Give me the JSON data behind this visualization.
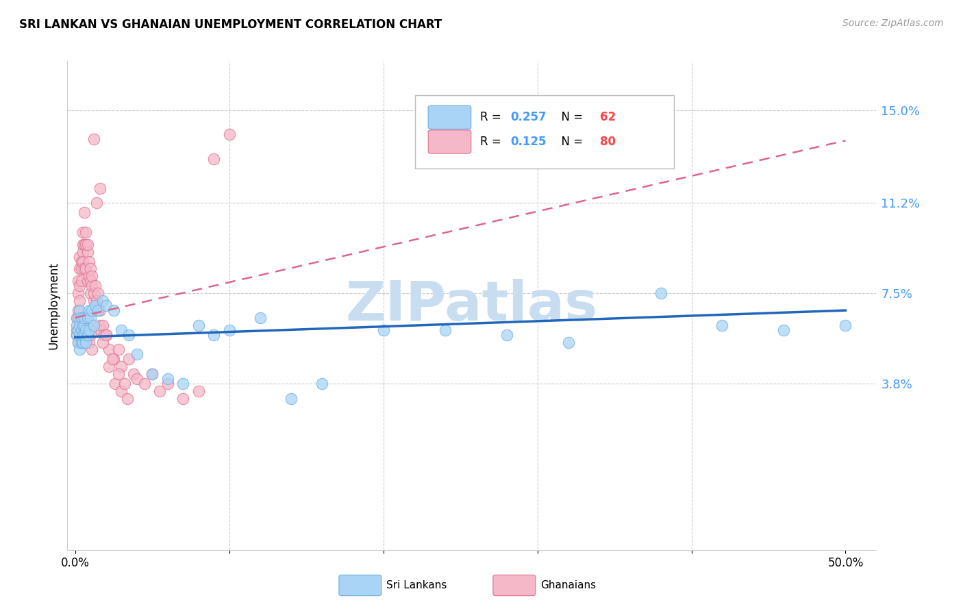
{
  "title": "SRI LANKAN VS GHANAIAN UNEMPLOYMENT CORRELATION CHART",
  "source": "Source: ZipAtlas.com",
  "ylabel": "Unemployment",
  "ytick_labels": [
    "15.0%",
    "11.2%",
    "7.5%",
    "3.8%"
  ],
  "ytick_values": [
    0.15,
    0.112,
    0.075,
    0.038
  ],
  "xlim": [
    -0.005,
    0.52
  ],
  "ylim": [
    -0.03,
    0.17
  ],
  "color_sri": "#aad4f5",
  "color_sri_edge": "#6aaee0",
  "color_ghana": "#f5b8c8",
  "color_ghana_edge": "#e07090",
  "color_sri_line": "#2266bb",
  "color_ghana_line": "#dd6688",
  "watermark": "ZIPatlas",
  "watermark_color": "#c8ddf0",
  "sri_lankan_x": [
    0.001,
    0.001,
    0.002,
    0.002,
    0.002,
    0.003,
    0.003,
    0.003,
    0.003,
    0.004,
    0.004,
    0.004,
    0.005,
    0.005,
    0.005,
    0.006,
    0.006,
    0.006,
    0.007,
    0.007,
    0.008,
    0.008,
    0.009,
    0.009,
    0.01,
    0.011,
    0.012,
    0.013,
    0.015,
    0.018,
    0.02,
    0.025,
    0.03,
    0.035,
    0.04,
    0.05,
    0.06,
    0.07,
    0.08,
    0.09,
    0.1,
    0.12,
    0.14,
    0.16,
    0.2,
    0.24,
    0.28,
    0.32,
    0.38,
    0.42,
    0.46,
    0.5
  ],
  "sri_lankan_y": [
    0.058,
    0.062,
    0.055,
    0.06,
    0.065,
    0.052,
    0.058,
    0.062,
    0.068,
    0.055,
    0.06,
    0.065,
    0.055,
    0.058,
    0.062,
    0.058,
    0.062,
    0.065,
    0.055,
    0.06,
    0.058,
    0.065,
    0.06,
    0.068,
    0.065,
    0.068,
    0.062,
    0.07,
    0.068,
    0.072,
    0.07,
    0.068,
    0.06,
    0.058,
    0.05,
    0.042,
    0.04,
    0.038,
    0.062,
    0.058,
    0.06,
    0.065,
    0.032,
    0.038,
    0.06,
    0.06,
    0.058,
    0.055,
    0.075,
    0.062,
    0.06,
    0.062
  ],
  "ghanaian_x": [
    0.001,
    0.001,
    0.001,
    0.002,
    0.002,
    0.002,
    0.002,
    0.003,
    0.003,
    0.003,
    0.003,
    0.003,
    0.004,
    0.004,
    0.004,
    0.004,
    0.005,
    0.005,
    0.005,
    0.005,
    0.006,
    0.006,
    0.006,
    0.007,
    0.007,
    0.007,
    0.008,
    0.008,
    0.008,
    0.009,
    0.009,
    0.01,
    0.01,
    0.01,
    0.011,
    0.011,
    0.012,
    0.012,
    0.013,
    0.013,
    0.014,
    0.015,
    0.015,
    0.016,
    0.016,
    0.017,
    0.018,
    0.019,
    0.02,
    0.022,
    0.025,
    0.028,
    0.03,
    0.035,
    0.038,
    0.04,
    0.045,
    0.05,
    0.055,
    0.06,
    0.07,
    0.08,
    0.09,
    0.1,
    0.012,
    0.014,
    0.016,
    0.018,
    0.02,
    0.022,
    0.024,
    0.026,
    0.028,
    0.03,
    0.032,
    0.034,
    0.008,
    0.009,
    0.01,
    0.011
  ],
  "ghanaian_y": [
    0.06,
    0.065,
    0.058,
    0.068,
    0.075,
    0.08,
    0.055,
    0.078,
    0.085,
    0.09,
    0.065,
    0.072,
    0.088,
    0.08,
    0.085,
    0.06,
    0.092,
    0.095,
    0.088,
    0.1,
    0.085,
    0.095,
    0.108,
    0.095,
    0.1,
    0.085,
    0.092,
    0.08,
    0.095,
    0.082,
    0.088,
    0.085,
    0.075,
    0.08,
    0.078,
    0.082,
    0.072,
    0.075,
    0.068,
    0.078,
    0.072,
    0.068,
    0.075,
    0.062,
    0.068,
    0.06,
    0.062,
    0.058,
    0.058,
    0.052,
    0.048,
    0.052,
    0.045,
    0.048,
    0.042,
    0.04,
    0.038,
    0.042,
    0.035,
    0.038,
    0.032,
    0.035,
    0.13,
    0.14,
    0.138,
    0.112,
    0.118,
    0.055,
    0.058,
    0.045,
    0.048,
    0.038,
    0.042,
    0.035,
    0.038,
    0.032,
    0.062,
    0.055,
    0.058,
    0.052
  ]
}
